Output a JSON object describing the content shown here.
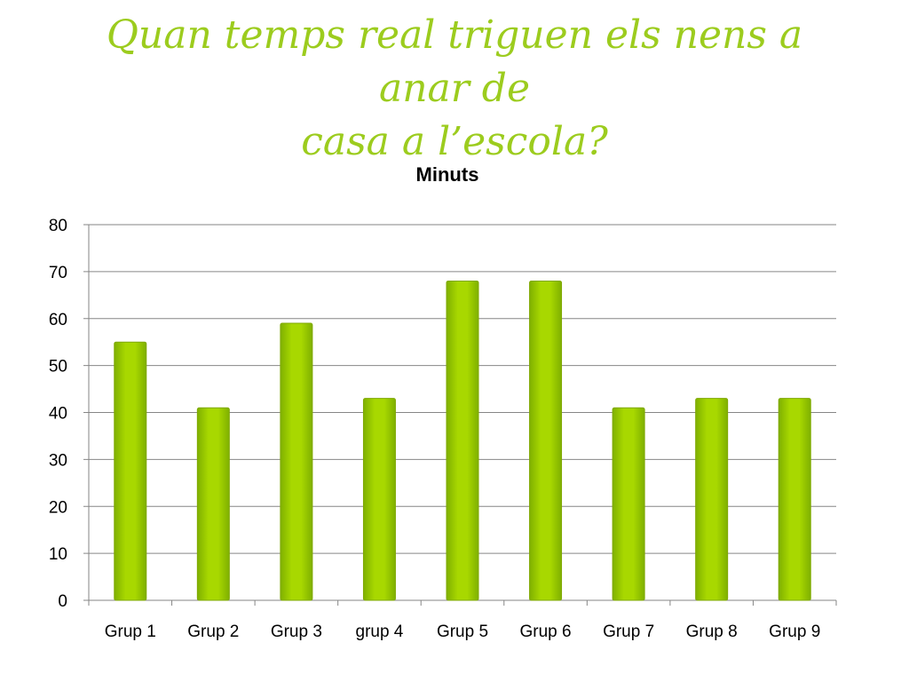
{
  "slide": {
    "title_line1": "Quan temps real triguen els nens a anar de",
    "title_line2": "casa a l’escola?"
  },
  "colors": {
    "title": "#9ccc1e",
    "bar": "#a4d400",
    "bar_edge": "#7fa800",
    "grid": "#868686"
  },
  "chart_data": {
    "type": "bar",
    "title": "Minuts",
    "categories": [
      "Grup 1",
      "Grup 2",
      "Grup 3",
      "grup 4",
      "Grup 5",
      "Grup 6",
      "Grup 7",
      "Grup 8",
      "Grup 9"
    ],
    "values": [
      55,
      41,
      59,
      43,
      68,
      68,
      41,
      43,
      43
    ],
    "ylim": [
      0,
      80
    ],
    "yticks": [
      0,
      10,
      20,
      30,
      40,
      50,
      60,
      70,
      80
    ],
    "grid": true,
    "legend": "none"
  }
}
